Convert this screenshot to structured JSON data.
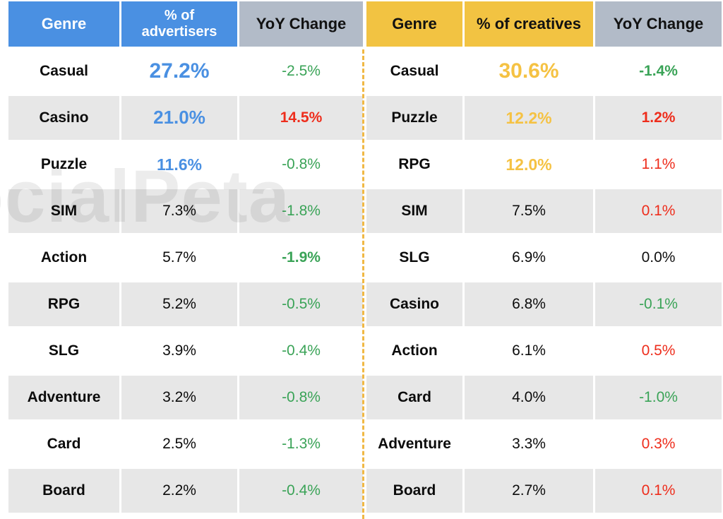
{
  "watermark": "SocialPeta",
  "colors": {
    "advertisers_accent": "#4a90e2",
    "creatives_accent": "#f2c342",
    "creatives_value_accent": "#f5c243",
    "yoy_header_bg": "#b2bbc8",
    "row_alt_bg": "#e7e7e7",
    "increase_red": "#ee2d1c",
    "decrease_green": "#3aa357",
    "divider_yellow": "#f0b844"
  },
  "chart_data": [
    {
      "type": "table",
      "id": "advertisers",
      "accent": "#4a90e2",
      "header_text_color": "#ffffff",
      "columns": [
        "Genre",
        "% of advertisers",
        "YoY Change"
      ],
      "rows": [
        {
          "genre": "Casual",
          "pct": "27.2%",
          "pct_style": "accent size-xl",
          "yoy": "-2.5%",
          "yoy_style": "green"
        },
        {
          "genre": "Casino",
          "pct": "21.0%",
          "pct_style": "accent size-lg",
          "yoy": "14.5%",
          "yoy_style": "red bold"
        },
        {
          "genre": "Puzzle",
          "pct": "11.6%",
          "pct_style": "accent size-md",
          "yoy": "-0.8%",
          "yoy_style": "green"
        },
        {
          "genre": "SIM",
          "pct": "7.3%",
          "pct_style": "",
          "yoy": "-1.8%",
          "yoy_style": "green"
        },
        {
          "genre": "Action",
          "pct": "5.7%",
          "pct_style": "",
          "yoy": "-1.9%",
          "yoy_style": "green bold"
        },
        {
          "genre": "RPG",
          "pct": "5.2%",
          "pct_style": "",
          "yoy": "-0.5%",
          "yoy_style": "green"
        },
        {
          "genre": "SLG",
          "pct": "3.9%",
          "pct_style": "",
          "yoy": "-0.4%",
          "yoy_style": "green"
        },
        {
          "genre": "Adventure",
          "pct": "3.2%",
          "pct_style": "",
          "yoy": "-0.8%",
          "yoy_style": "green"
        },
        {
          "genre": "Card",
          "pct": "2.5%",
          "pct_style": "",
          "yoy": "-1.3%",
          "yoy_style": "green"
        },
        {
          "genre": "Board",
          "pct": "2.2%",
          "pct_style": "",
          "yoy": "-0.4%",
          "yoy_style": "green"
        }
      ]
    },
    {
      "type": "table",
      "id": "creatives",
      "accent": "#f2c342",
      "value_accent": "#f5c243",
      "header_text_color": "#111111",
      "columns": [
        "Genre",
        "% of creatives",
        "YoY Change"
      ],
      "rows": [
        {
          "genre": "Casual",
          "pct": "30.6%",
          "pct_style": "accent size-xl",
          "yoy": "-1.4%",
          "yoy_style": "green bold"
        },
        {
          "genre": "Puzzle",
          "pct": "12.2%",
          "pct_style": "accent size-md",
          "yoy": "1.2%",
          "yoy_style": "red bold"
        },
        {
          "genre": "RPG",
          "pct": "12.0%",
          "pct_style": "accent size-md",
          "yoy": "1.1%",
          "yoy_style": "red"
        },
        {
          "genre": "SIM",
          "pct": "7.5%",
          "pct_style": "",
          "yoy": "0.1%",
          "yoy_style": "red"
        },
        {
          "genre": "SLG",
          "pct": "6.9%",
          "pct_style": "",
          "yoy": "0.0%",
          "yoy_style": "black"
        },
        {
          "genre": "Casino",
          "pct": "6.8%",
          "pct_style": "",
          "yoy": "-0.1%",
          "yoy_style": "green"
        },
        {
          "genre": "Action",
          "pct": "6.1%",
          "pct_style": "",
          "yoy": "0.5%",
          "yoy_style": "red"
        },
        {
          "genre": "Card",
          "pct": "4.0%",
          "pct_style": "",
          "yoy": "-1.0%",
          "yoy_style": "green"
        },
        {
          "genre": "Adventure",
          "pct": "3.3%",
          "pct_style": "",
          "yoy": "0.3%",
          "yoy_style": "red"
        },
        {
          "genre": "Board",
          "pct": "2.7%",
          "pct_style": "",
          "yoy": "0.1%",
          "yoy_style": "red"
        }
      ]
    }
  ]
}
